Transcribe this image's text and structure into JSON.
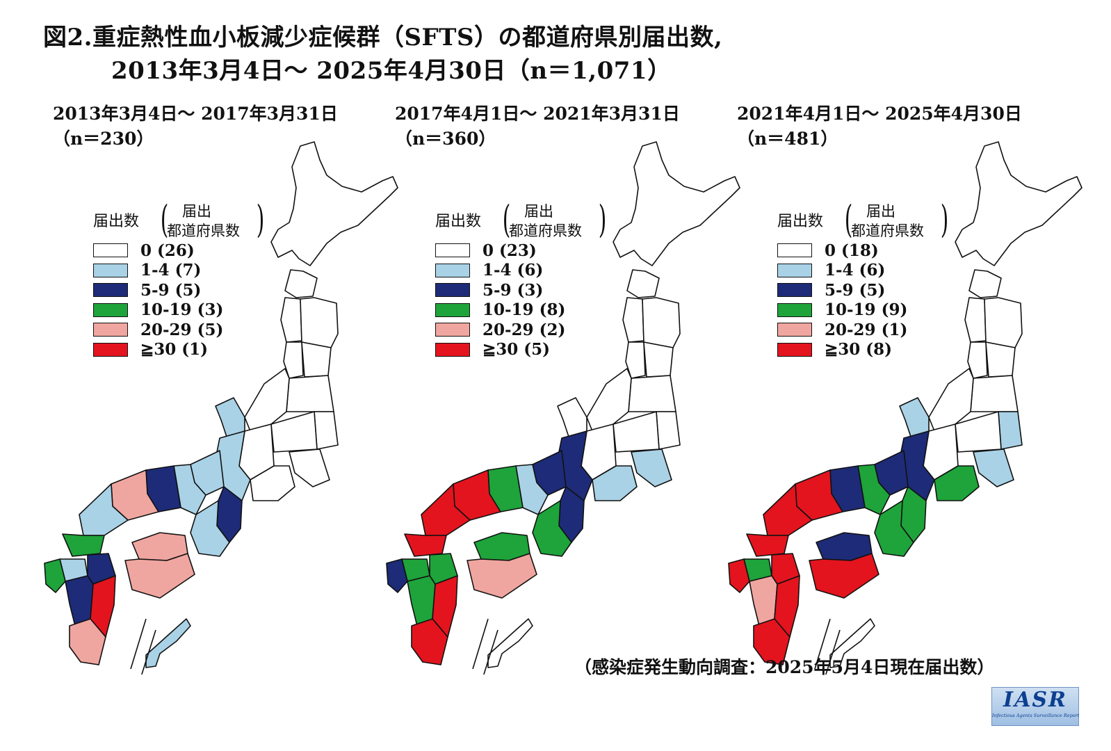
{
  "title": {
    "line1": "図2.重症熱性血小板減少症候群（SFTS）の都道府県別届出数,",
    "line2": "2013年3月4日〜 2025年4月30日（n＝1,071）"
  },
  "legend_header": {
    "main": "届出数",
    "sub1": "届出",
    "sub2": "都道府県数"
  },
  "colors": {
    "c0": "#ffffff",
    "c1": "#a9d2e6",
    "c2": "#1d2b78",
    "c3": "#1ea43a",
    "c4": "#f0a6a0",
    "c5": "#e3141e"
  },
  "panels": [
    {
      "period": "2013年3月4日〜 2017年3月31日",
      "n_label": "（n＝230）",
      "legend": [
        {
          "range": "0",
          "prefectures": "(26)",
          "color": "#ffffff"
        },
        {
          "range": "1-4",
          "prefectures": "(7)",
          "color": "#a9d2e6"
        },
        {
          "range": "5-9",
          "prefectures": "(5)",
          "color": "#1d2b78"
        },
        {
          "range": "10-19",
          "prefectures": "(3)",
          "color": "#1ea43a"
        },
        {
          "range": "20-29",
          "prefectures": "(5)",
          "color": "#f0a6a0"
        },
        {
          "range": "≧30",
          "prefectures": "(1)",
          "color": "#e3141e"
        }
      ]
    },
    {
      "period": "2017年4月1日〜 2021年3月31日",
      "n_label": "（n＝360）",
      "legend": [
        {
          "range": "0",
          "prefectures": "(23)",
          "color": "#ffffff"
        },
        {
          "range": "1-4",
          "prefectures": "(6)",
          "color": "#a9d2e6"
        },
        {
          "range": "5-9",
          "prefectures": "(3)",
          "color": "#1d2b78"
        },
        {
          "range": "10-19",
          "prefectures": "(8)",
          "color": "#1ea43a"
        },
        {
          "range": "20-29",
          "prefectures": "(2)",
          "color": "#f0a6a0"
        },
        {
          "range": "≧30",
          "prefectures": "(5)",
          "color": "#e3141e"
        }
      ]
    },
    {
      "period": "2021年4月1日〜 2025年4月30日",
      "n_label": "（n＝481）",
      "legend": [
        {
          "range": "0",
          "prefectures": "(18)",
          "color": "#ffffff"
        },
        {
          "range": "1-4",
          "prefectures": "(6)",
          "color": "#a9d2e6"
        },
        {
          "range": "5-9",
          "prefectures": "(5)",
          "color": "#1d2b78"
        },
        {
          "range": "10-19",
          "prefectures": "(9)",
          "color": "#1ea43a"
        },
        {
          "range": "20-29",
          "prefectures": "(1)",
          "color": "#f0a6a0"
        },
        {
          "range": "≧30",
          "prefectures": "(8)",
          "color": "#e3141e"
        }
      ]
    }
  ],
  "source": "（感染症発生動向調査：2025年5月4日現在届出数）",
  "logo": {
    "text": "IASR",
    "subtitle": "Infectious Agents Surveillance Report"
  }
}
